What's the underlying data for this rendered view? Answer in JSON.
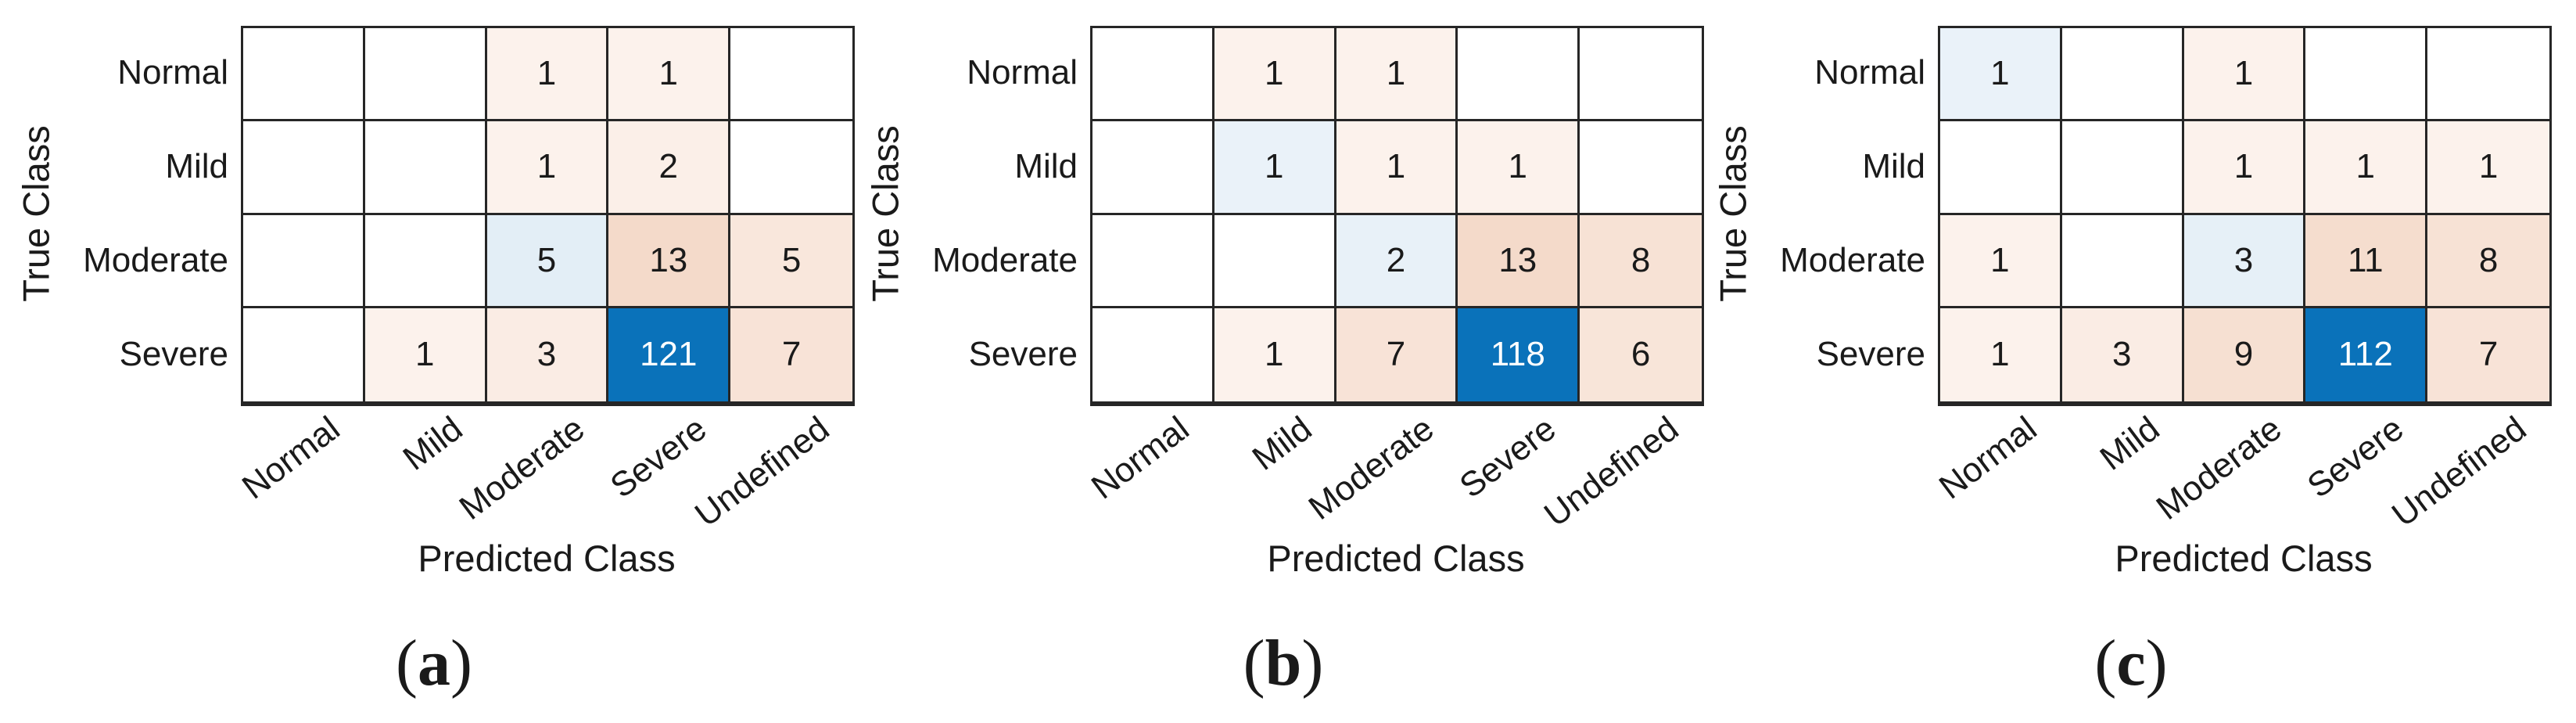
{
  "figure": {
    "caption_open": "(",
    "caption_close": ")"
  },
  "palette": {
    "grid_line_color": "#262626",
    "text_color": "#1a1a1a",
    "diagonal_max_color": "#0A72BA",
    "dark_cell_text_color": "#FFFFFF",
    "diagonal_light_color": "#E3EEF6",
    "offdiagonal_light_color": "#FCF2EC",
    "offdiagonal_strong_color": "#F4DACA",
    "empty_cell_color": "#FFFFFF"
  },
  "chart_data": [
    {
      "type": "heatmap",
      "subtype": "confusion-matrix",
      "caption_letter": "a",
      "xlabel": "Predicted Class",
      "ylabel": "True Class",
      "x_categories": [
        "Normal",
        "Mild",
        "Moderate",
        "Severe",
        "Undefined"
      ],
      "y_categories": [
        "Normal",
        "Mild",
        "Moderate",
        "Severe"
      ],
      "matrix": [
        [
          null,
          null,
          1,
          1,
          null
        ],
        [
          null,
          null,
          1,
          2,
          null
        ],
        [
          null,
          null,
          5,
          13,
          5
        ],
        [
          null,
          1,
          3,
          121,
          7
        ]
      ],
      "cell_colors": [
        [
          "#FFFFFF",
          "#FFFFFF",
          "#FCF2EC",
          "#FCF2EC",
          "#FFFFFF"
        ],
        [
          "#FFFFFF",
          "#FFFFFF",
          "#FCF2EC",
          "#FBEFE8",
          "#FFFFFF"
        ],
        [
          "#FFFFFF",
          "#FFFFFF",
          "#E3EEF6",
          "#F4DACA",
          "#F9E7DC"
        ],
        [
          "#FFFFFF",
          "#FCF2EC",
          "#FAECE4",
          "#0A72BA",
          "#F8E3D7"
        ]
      ]
    },
    {
      "type": "heatmap",
      "subtype": "confusion-matrix",
      "caption_letter": "b",
      "xlabel": "Predicted Class",
      "ylabel": "True Class",
      "x_categories": [
        "Normal",
        "Mild",
        "Moderate",
        "Severe",
        "Undefined"
      ],
      "y_categories": [
        "Normal",
        "Mild",
        "Moderate",
        "Severe"
      ],
      "matrix": [
        [
          null,
          1,
          1,
          null,
          null
        ],
        [
          null,
          1,
          1,
          1,
          null
        ],
        [
          null,
          null,
          2,
          13,
          8
        ],
        [
          null,
          1,
          7,
          118,
          6
        ]
      ],
      "cell_colors": [
        [
          "#FFFFFF",
          "#FCF2EC",
          "#FCF2EC",
          "#FFFFFF",
          "#FFFFFF"
        ],
        [
          "#FFFFFF",
          "#EAF2F9",
          "#FCF2EC",
          "#FCF2EC",
          "#FFFFFF"
        ],
        [
          "#FFFFFF",
          "#FFFFFF",
          "#E8F1F8",
          "#F4DACA",
          "#F7E2D5"
        ],
        [
          "#FFFFFF",
          "#FCF2EC",
          "#F8E3D7",
          "#0A72BA",
          "#F8E5D9"
        ]
      ]
    },
    {
      "type": "heatmap",
      "subtype": "confusion-matrix",
      "caption_letter": "c",
      "xlabel": "Predicted Class",
      "ylabel": "True Class",
      "x_categories": [
        "Normal",
        "Mild",
        "Moderate",
        "Severe",
        "Undefined"
      ],
      "y_categories": [
        "Normal",
        "Mild",
        "Moderate",
        "Severe"
      ],
      "matrix": [
        [
          1,
          null,
          1,
          null,
          null
        ],
        [
          null,
          null,
          1,
          1,
          1
        ],
        [
          1,
          null,
          3,
          11,
          8
        ],
        [
          1,
          3,
          9,
          112,
          7
        ]
      ],
      "cell_colors": [
        [
          "#EAF2F9",
          "#FFFFFF",
          "#FCF2EC",
          "#FFFFFF",
          "#FFFFFF"
        ],
        [
          "#FFFFFF",
          "#FFFFFF",
          "#FCF2EC",
          "#FCF2EC",
          "#FCF2EC"
        ],
        [
          "#FCF2EC",
          "#FFFFFF",
          "#E6F0F7",
          "#F5DDCE",
          "#F7E2D5"
        ],
        [
          "#FCF2EC",
          "#FAECE4",
          "#F6E0D2",
          "#0A72BA",
          "#F8E3D7"
        ]
      ]
    }
  ]
}
